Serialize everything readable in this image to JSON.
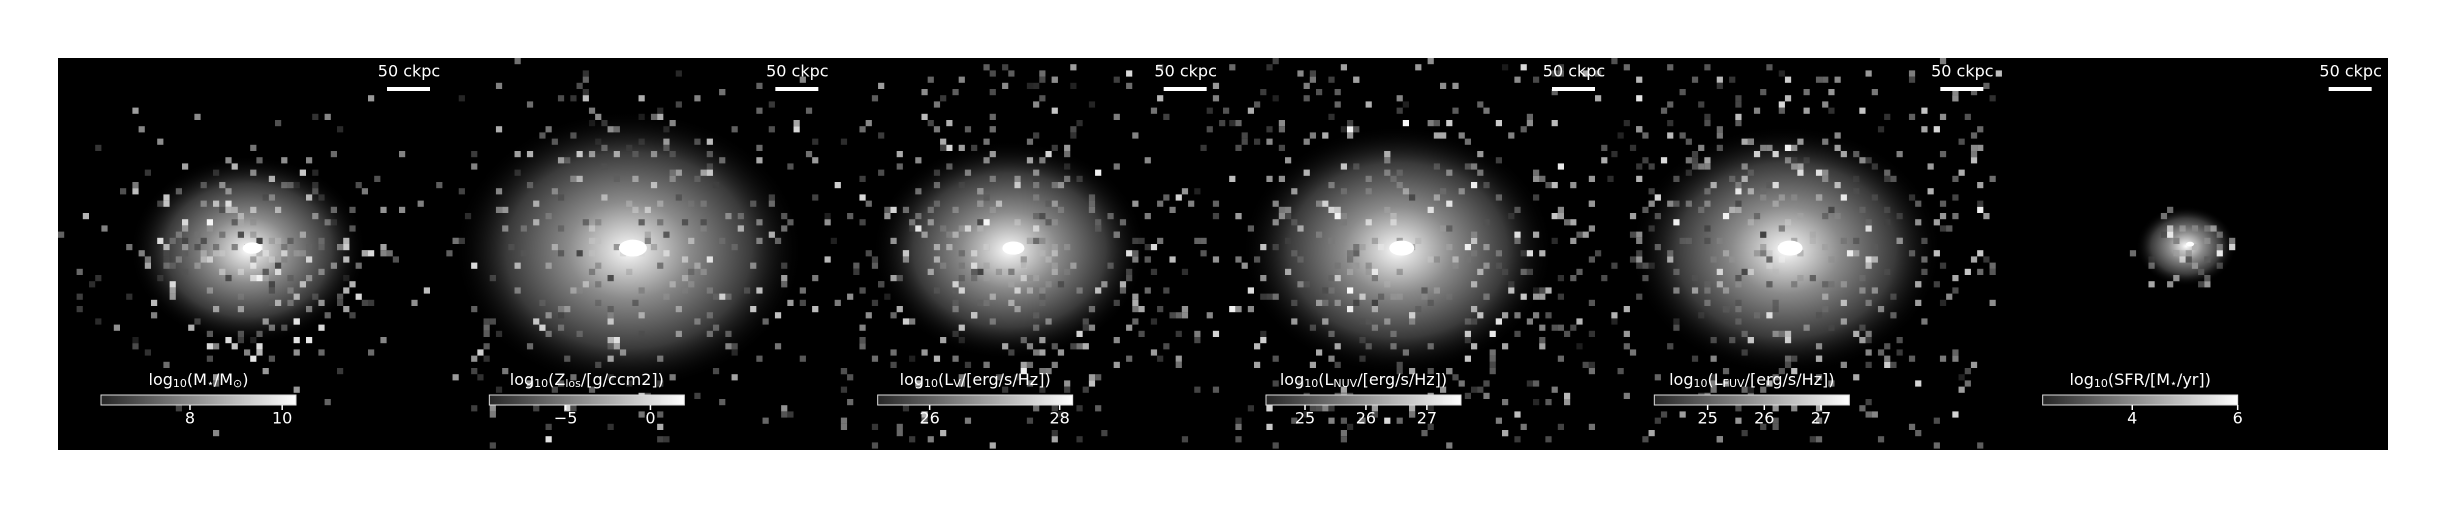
{
  "panels": [
    {
      "scale_bar": "50 ckpc",
      "colorbar": {
        "label": [
          "log",
          "10",
          "(M",
          "⋆",
          "/M",
          "⊙",
          ")"
        ],
        "label_sub": [
          false,
          true,
          false,
          true,
          false,
          true,
          false
        ],
        "lim": [
          6.07,
          10.3
        ],
        "ticks": [
          8,
          10
        ]
      }
    },
    {
      "scale_bar": "50 ckpc",
      "colorbar": {
        "label": [
          "log",
          "10",
          "(Z",
          "los",
          "/[g/ccm",
          "2",
          "])"
        ],
        "label_sub": [
          false,
          true,
          false,
          true,
          false,
          false,
          false
        ],
        "lim": [
          -9.5,
          2.0
        ],
        "ticks": [
          {
            "value": -5,
            "label": "−5"
          },
          0
        ]
      }
    },
    {
      "scale_bar": "50 ckpc",
      "colorbar": {
        "label": [
          "log",
          "10",
          "(L",
          "V",
          "/[erg/s/Hz])"
        ],
        "label_sub": [
          false,
          true,
          false,
          true,
          false
        ],
        "lim": [
          25.2,
          28.2
        ],
        "ticks": [
          26,
          28
        ]
      }
    },
    {
      "scale_bar": "50 ckpc",
      "colorbar": {
        "label": [
          "log",
          "10",
          "(L",
          "NUV",
          "/[erg/s/Hz])"
        ],
        "label_sub": [
          false,
          true,
          false,
          true,
          false
        ],
        "lim": [
          24.36,
          27.56
        ],
        "ticks": [
          25,
          26,
          27
        ]
      }
    },
    {
      "scale_bar": "50 ckpc",
      "colorbar": {
        "label": [
          "log",
          "10",
          "(L",
          "FUV",
          "/[erg/s/Hz])"
        ],
        "label_sub": [
          false,
          true,
          false,
          true,
          false
        ],
        "lim": [
          24.06,
          27.5
        ],
        "ticks": [
          25,
          26,
          27
        ]
      }
    },
    {
      "scale_bar": "50 ckpc",
      "colorbar": {
        "label": [
          "log",
          "10",
          "(SFR/[M",
          "⋆",
          "/yr])"
        ],
        "label_sub": [
          false,
          true,
          false,
          true,
          false
        ],
        "lim": [
          2.3,
          6.0
        ],
        "ticks": [
          4,
          6
        ]
      }
    }
  ]
}
